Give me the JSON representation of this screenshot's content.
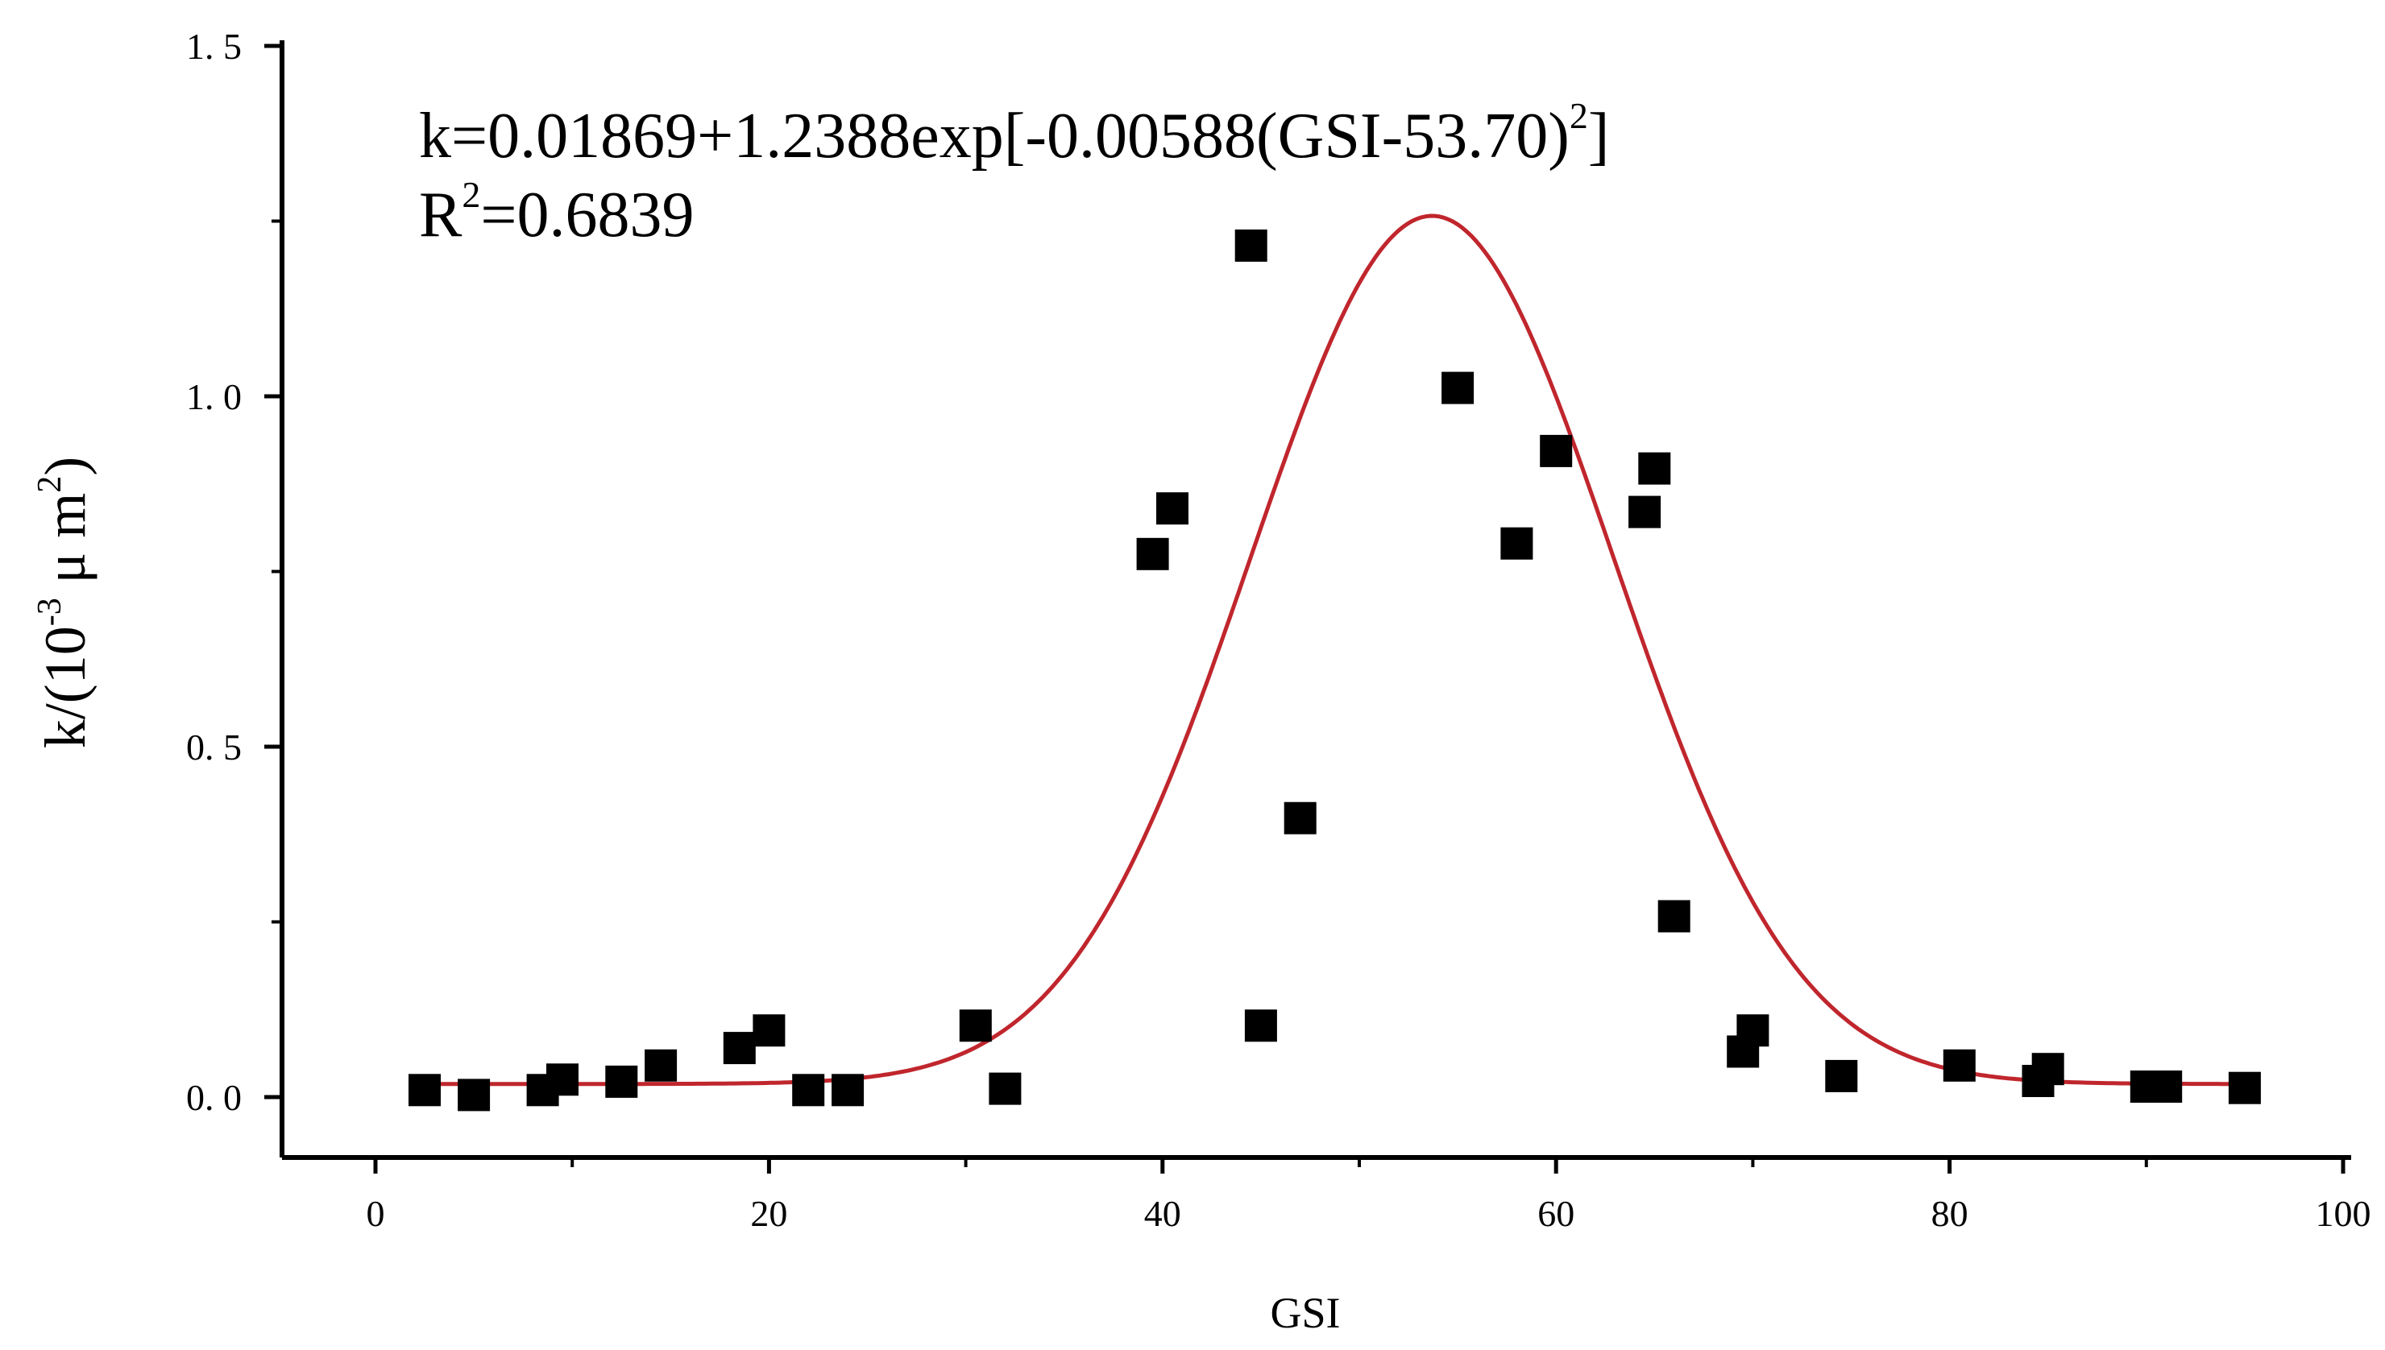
{
  "chart_data": {
    "type": "scatter",
    "xlabel": "GSI",
    "ylabel": "k/(10-3 μm2)",
    "ylabel_parts": {
      "prefix": "k/(10",
      "exp": "-3",
      "mid": " μ m",
      "exp2": "2",
      "suffix": ")"
    },
    "xlim": [
      -5,
      100
    ],
    "ylim": [
      -0.08,
      1.5
    ],
    "x_ticks": [
      0,
      20,
      40,
      60,
      80,
      100
    ],
    "x_tick_labels": [
      "0",
      "20",
      "40",
      "60",
      "80",
      "100"
    ],
    "y_ticks": [
      0.0,
      0.5,
      1.0,
      1.5
    ],
    "y_tick_labels": [
      "0. 0",
      "0. 5",
      "1. 0",
      "1. 5"
    ],
    "grid": false,
    "annotation": {
      "equation_main": "k=0.01869+1.2388exp[-0.00588(GSI-53.70)",
      "equation_exp": "2",
      "equation_end": "]",
      "r2_prefix": "R",
      "r2_exp": "2",
      "r2_value": "=0.6839"
    },
    "fit": {
      "a": 0.01869,
      "b": 1.2388,
      "c": 0.00588,
      "x0": 53.7,
      "color": "#c0262d"
    },
    "series": [
      {
        "marker": "square",
        "color": "#000000",
        "x": [
          2.5,
          5,
          8.5,
          9.5,
          12.5,
          14.5,
          18.5,
          20,
          22,
          24,
          30.5,
          32,
          39.5,
          40.5,
          44.5,
          45,
          47,
          55,
          58,
          60,
          64.5,
          65,
          66,
          69.5,
          70,
          74.5,
          80.5,
          84.5,
          85,
          90,
          91,
          95
        ],
        "y": [
          0.01,
          0.003,
          0.01,
          0.025,
          0.022,
          0.045,
          0.07,
          0.095,
          0.01,
          0.01,
          0.102,
          0.012,
          0.775,
          0.84,
          1.215,
          0.102,
          0.398,
          1.012,
          0.79,
          0.922,
          0.835,
          0.897,
          0.258,
          0.065,
          0.095,
          0.03,
          0.045,
          0.023,
          0.04,
          0.015,
          0.015,
          0.013
        ]
      }
    ]
  }
}
